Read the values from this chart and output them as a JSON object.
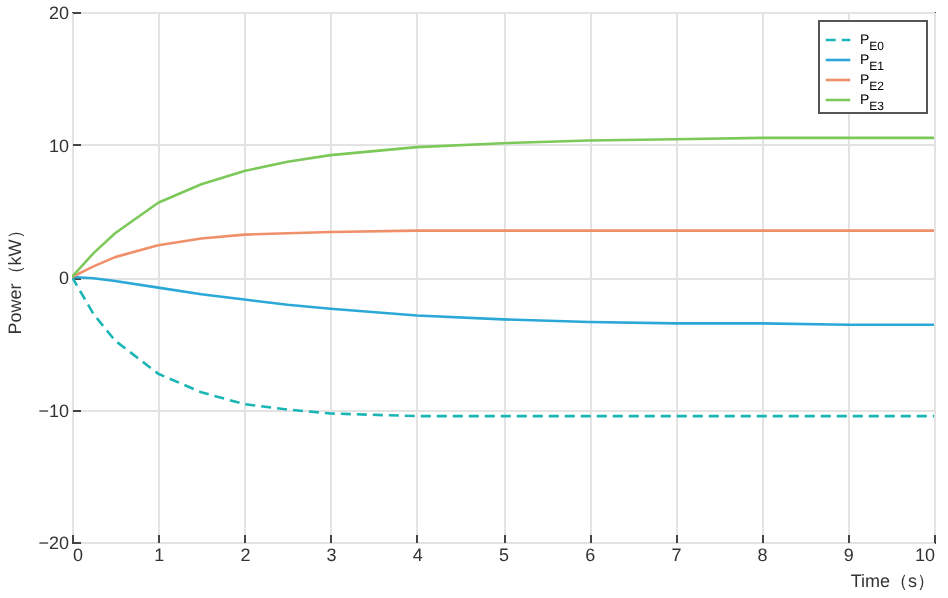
{
  "chart_data": {
    "type": "line",
    "xlabel": "Time（s）",
    "ylabel": "Power（kW）",
    "xlim": [
      0,
      10
    ],
    "ylim": [
      -20,
      20
    ],
    "xticks": [
      0,
      1,
      2,
      3,
      4,
      5,
      6,
      7,
      8,
      9,
      10
    ],
    "yticks": [
      -20,
      -10,
      0,
      10,
      20
    ],
    "grid": true,
    "legend": "top right",
    "x": [
      0,
      0.25,
      0.5,
      1,
      1.5,
      2,
      2.5,
      3,
      4,
      5,
      6,
      7,
      8,
      9,
      10
    ],
    "series": [
      {
        "name": "P$_{E0}$",
        "color": "#1ab5b5",
        "line_style": "dashed",
        "values": [
          0,
          -2.8,
          -4.8,
          -7.3,
          -8.7,
          -9.6,
          -10,
          -10.3,
          -10.5,
          -10.5,
          -10.5,
          -10.5,
          -10.5,
          -10.5,
          -10.5
        ]
      },
      {
        "name": "P$_{E1}$",
        "color": "#2ba8d8",
        "line_style": "solid",
        "values": [
          0,
          -0.1,
          -0.3,
          -0.8,
          -1.3,
          -1.7,
          -2.1,
          -2.4,
          -2.9,
          -3.2,
          -3.4,
          -3.5,
          -3.5,
          -3.6,
          -3.6
        ]
      },
      {
        "name": "P$_{E2}$",
        "color": "#f0906a",
        "line_style": "solid",
        "values": [
          0,
          0.8,
          1.5,
          2.4,
          2.9,
          3.2,
          3.3,
          3.4,
          3.5,
          3.5,
          3.5,
          3.5,
          3.5,
          3.5,
          3.5
        ]
      },
      {
        "name": "P$_{E3}$",
        "color": "#7cc95a",
        "line_style": "solid",
        "values": [
          0,
          1.8,
          3.3,
          5.6,
          7,
          8,
          8.7,
          9.2,
          9.8,
          10.1,
          10.3,
          10.4,
          10.5,
          10.5,
          10.5
        ]
      }
    ]
  }
}
